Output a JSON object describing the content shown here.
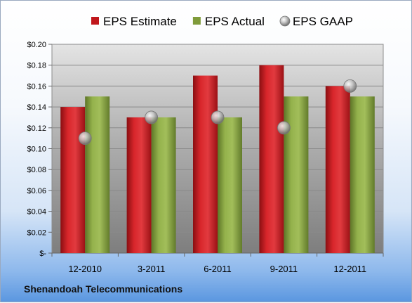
{
  "company": "Shenandoah Telecommunications",
  "chart_data": {
    "type": "bar",
    "categories": [
      "12-2010",
      "3-2011",
      "6-2011",
      "9-2011",
      "12-2011"
    ],
    "series": [
      {
        "name": "EPS Estimate",
        "kind": "bar",
        "color": "#c0171c",
        "values": [
          0.14,
          0.13,
          0.17,
          0.18,
          0.16
        ]
      },
      {
        "name": "EPS Actual",
        "kind": "bar",
        "color": "#7f9b3a",
        "values": [
          0.15,
          0.13,
          0.13,
          0.15,
          0.15
        ]
      },
      {
        "name": "EPS GAAP",
        "kind": "marker",
        "color": "#b8b8b8",
        "values": [
          0.11,
          0.13,
          0.13,
          0.12,
          0.16
        ]
      }
    ],
    "ylim": [
      0,
      0.2
    ],
    "yticks": [
      {
        "value": 0.2,
        "label": "$0.20"
      },
      {
        "value": 0.18,
        "label": "$0.18"
      },
      {
        "value": 0.16,
        "label": "$0.16"
      },
      {
        "value": 0.14,
        "label": "$0.14"
      },
      {
        "value": 0.12,
        "label": "$0.12"
      },
      {
        "value": 0.1,
        "label": "$0.10"
      },
      {
        "value": 0.08,
        "label": "$0.08"
      },
      {
        "value": 0.06,
        "label": "$0.06"
      },
      {
        "value": 0.04,
        "label": "$0.04"
      },
      {
        "value": 0.02,
        "label": "$0.02"
      },
      {
        "value": 0,
        "label": "$-"
      }
    ],
    "legend_position": "top",
    "grid": true
  }
}
